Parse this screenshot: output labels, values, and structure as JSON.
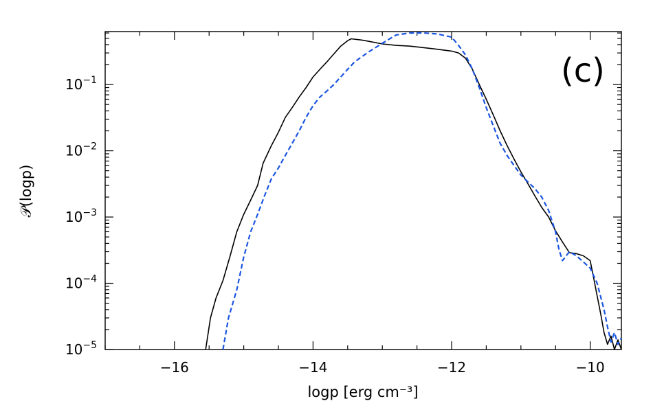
{
  "chart_data": {
    "type": "line",
    "panel_label": "(c)",
    "xlabel": "logp [erg cm⁻³]",
    "ylabel": "𝒫(logp)",
    "xlim": [
      -17.0,
      -9.55
    ],
    "ylim": [
      1e-05,
      0.63
    ],
    "yscale": "log",
    "x_ticks": [
      -16,
      -14,
      -12,
      -10
    ],
    "x_tick_labels": [
      "−16",
      "−14",
      "−12",
      "−10"
    ],
    "y_ticks": [
      1e-05,
      0.0001,
      0.001,
      0.01,
      0.1
    ],
    "y_tick_labels": [
      {
        "base": "10",
        "exp": "−5"
      },
      {
        "base": "10",
        "exp": "−4"
      },
      {
        "base": "10",
        "exp": "−3"
      },
      {
        "base": "10",
        "exp": "−2"
      },
      {
        "base": "10",
        "exp": "−1"
      }
    ],
    "grid": false,
    "series": [
      {
        "color": "#000000",
        "style": "solid",
        "x": [
          -15.55,
          -15.48,
          -15.4,
          -15.3,
          -15.2,
          -15.1,
          -15.0,
          -14.9,
          -14.8,
          -14.72,
          -14.6,
          -14.5,
          -14.4,
          -14.3,
          -14.2,
          -14.1,
          -14.0,
          -13.9,
          -13.8,
          -13.7,
          -13.6,
          -13.5,
          -13.45,
          -13.3,
          -13.2,
          -13.0,
          -12.8,
          -12.6,
          -12.4,
          -12.2,
          -12.0,
          -11.9,
          -11.8,
          -11.7,
          -11.6,
          -11.5,
          -11.4,
          -11.3,
          -11.2,
          -11.1,
          -11.0,
          -10.9,
          -10.8,
          -10.7,
          -10.6,
          -10.5,
          -10.4,
          -10.3,
          -10.2,
          -10.1,
          -10.0,
          -9.95,
          -9.9,
          -9.85,
          -9.8,
          -9.75,
          -9.7,
          -9.65,
          -9.6,
          -9.55
        ],
        "y": [
          1e-05,
          3e-05,
          6e-05,
          0.00011,
          0.00025,
          0.0006,
          0.0011,
          0.0018,
          0.003,
          0.0065,
          0.012,
          0.019,
          0.032,
          0.045,
          0.065,
          0.09,
          0.13,
          0.17,
          0.22,
          0.29,
          0.38,
          0.46,
          0.49,
          0.47,
          0.45,
          0.41,
          0.39,
          0.38,
          0.36,
          0.34,
          0.32,
          0.3,
          0.25,
          0.17,
          0.1,
          0.06,
          0.035,
          0.02,
          0.012,
          0.0075,
          0.0048,
          0.0032,
          0.0021,
          0.0014,
          0.001,
          0.00062,
          0.00042,
          0.00029,
          0.00028,
          0.00026,
          0.00022,
          0.00012,
          6.5e-05,
          3.5e-05,
          1.8e-05,
          1.2e-05,
          1.6e-05,
          1e-05,
          1.4e-05,
          1e-05
        ]
      },
      {
        "color": "#1a55e0",
        "style": "dashed",
        "x": [
          -15.3,
          -15.22,
          -15.1,
          -15.0,
          -14.9,
          -14.8,
          -14.7,
          -14.6,
          -14.5,
          -14.4,
          -14.3,
          -14.2,
          -14.1,
          -14.0,
          -13.9,
          -13.8,
          -13.7,
          -13.6,
          -13.5,
          -13.4,
          -13.2,
          -13.0,
          -12.8,
          -12.6,
          -12.4,
          -12.2,
          -12.0,
          -11.9,
          -11.8,
          -11.7,
          -11.6,
          -11.5,
          -11.4,
          -11.3,
          -11.2,
          -11.1,
          -11.0,
          -10.9,
          -10.8,
          -10.7,
          -10.6,
          -10.5,
          -10.45,
          -10.4,
          -10.3,
          -10.2,
          -10.1,
          -10.0,
          -9.9,
          -9.8,
          -9.75,
          -9.7,
          -9.65,
          -9.6,
          -9.55
        ],
        "y": [
          1e-05,
          3e-05,
          8e-05,
          0.00025,
          0.0006,
          0.0011,
          0.0021,
          0.0038,
          0.0055,
          0.0085,
          0.013,
          0.02,
          0.032,
          0.048,
          0.065,
          0.08,
          0.1,
          0.13,
          0.17,
          0.22,
          0.31,
          0.42,
          0.56,
          0.6,
          0.6,
          0.58,
          0.52,
          0.39,
          0.28,
          0.17,
          0.09,
          0.045,
          0.024,
          0.013,
          0.0085,
          0.006,
          0.0043,
          0.0034,
          0.0027,
          0.002,
          0.00125,
          0.0006,
          0.00032,
          0.00022,
          0.0003,
          0.00026,
          0.00021,
          0.00017,
          0.0001,
          4e-05,
          2.2e-05,
          1.3e-05,
          1.8e-05,
          1.2e-05,
          1.5e-05
        ]
      }
    ]
  }
}
